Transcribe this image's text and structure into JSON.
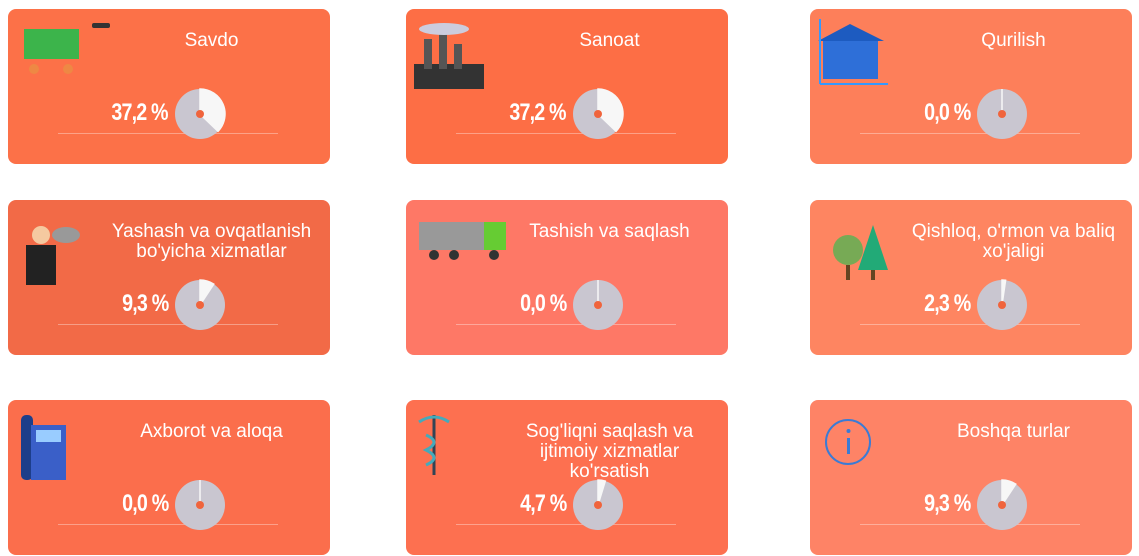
{
  "cards": [
    {
      "title": "Savdo",
      "value": 37.2,
      "value_label": "37,2 %",
      "color": "#fc7148"
    },
    {
      "title": "Sanoat",
      "value": 37.2,
      "value_label": "37,2 %",
      "color": "#fd6e45"
    },
    {
      "title": "Qurilish",
      "value": 0.0,
      "value_label": "0,0 %",
      "color": "#fd7f5a"
    },
    {
      "title": "Yashash va ovqatlanish bo'yicha xizmatlar",
      "value": 9.3,
      "value_label": "9,3 %",
      "color": "#f26a47"
    },
    {
      "title": "Tashish va saqlash",
      "value": 0.0,
      "value_label": "0,0 %",
      "color": "#fe7866"
    },
    {
      "title": "Qishloq, o'rmon va baliq xo'jaligi",
      "value": 2.3,
      "value_label": "2,3 %",
      "color": "#fe8561"
    },
    {
      "title": "Axborot va aloqa",
      "value": 0.0,
      "value_label": "0,0 %",
      "color": "#fb6e4c"
    },
    {
      "title": "Sog'liqni saqlash va ijtimoiy xizmatlar ko'rsatish",
      "value": 4.7,
      "value_label": "4,7 %",
      "color": "#fd7050"
    },
    {
      "title": "Boshqa turlar",
      "value": 9.3,
      "value_label": "9,3 %",
      "color": "#fe8366"
    }
  ]
}
